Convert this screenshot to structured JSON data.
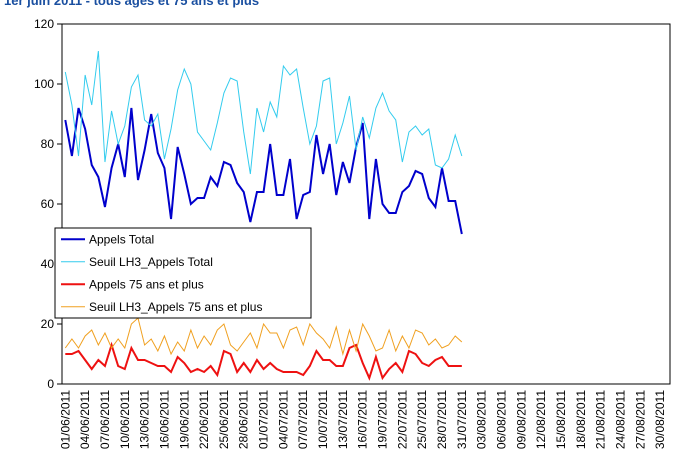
{
  "chart_data": {
    "type": "line",
    "title": "1er juin 2011 - tous âges et 75 ans et plus",
    "categories": [
      "01/06/2011",
      null,
      null,
      "04/06/2011",
      null,
      null,
      "07/06/2011",
      null,
      null,
      "10/06/2011",
      null,
      null,
      "13/06/2011",
      null,
      null,
      "16/06/2011",
      null,
      null,
      "19/06/2011",
      null,
      null,
      "22/06/2011",
      null,
      null,
      "25/06/2011",
      null,
      null,
      "28/06/2011",
      null,
      null,
      "01/07/2011",
      null,
      null,
      "04/07/2011",
      null,
      null,
      "07/07/2011",
      null,
      null,
      "10/07/2011",
      null,
      null,
      "13/07/2011",
      null,
      null,
      "16/07/2011",
      null,
      null,
      "19/07/2011",
      null,
      null,
      "22/07/2011",
      null,
      null,
      "25/07/2011",
      null,
      null,
      "28/07/2011",
      null,
      null,
      "31/07/2011",
      null,
      null,
      "03/08/2011",
      null,
      null,
      "06/08/2011",
      null,
      null,
      "09/08/2011",
      null,
      null,
      "12/08/2011",
      null,
      null,
      "15/08/2011",
      null,
      null,
      "18/08/2011",
      null,
      null,
      "21/08/2011",
      null,
      null,
      "24/08/2011",
      null,
      null,
      "27/08/2011",
      null,
      null,
      "30/08/2011",
      null
    ],
    "series": [
      {
        "name": "Appels Total",
        "color": "#0000cc",
        "width": 2,
        "values": [
          88,
          76,
          92,
          85,
          73,
          69,
          59,
          72,
          80,
          69,
          92,
          68,
          78,
          90,
          77,
          72,
          55,
          79,
          70,
          60,
          62,
          62,
          69,
          66,
          74,
          73,
          67,
          64,
          54,
          64,
          64,
          80,
          63,
          63,
          75,
          55,
          63,
          64,
          83,
          70,
          80,
          63,
          74,
          67,
          79,
          87,
          55,
          75,
          60,
          57,
          57,
          64,
          66,
          71,
          70,
          62,
          59,
          72,
          61,
          61,
          50,
          null,
          null,
          null,
          null,
          null,
          null,
          null,
          null,
          null,
          null,
          null,
          null,
          null,
          null,
          null,
          null,
          null,
          null,
          null,
          null,
          null,
          null,
          null,
          null,
          null,
          null,
          null,
          null,
          null,
          null,
          null
        ]
      },
      {
        "name": "Seuil LH3_Appels Total",
        "color": "#33ccee",
        "width": 1,
        "values": [
          104,
          93,
          76,
          103,
          93,
          111,
          74,
          91,
          80,
          86,
          99,
          103,
          88,
          86,
          90,
          75,
          85,
          98,
          105,
          100,
          84,
          81,
          78,
          87,
          97,
          102,
          101,
          84,
          70,
          92,
          84,
          94,
          89,
          106,
          103,
          105,
          92,
          80,
          86,
          101,
          102,
          80,
          87,
          96,
          78,
          89,
          82,
          92,
          97,
          91,
          88,
          74,
          84,
          86,
          83,
          85,
          73,
          72,
          75,
          83,
          76,
          null,
          null,
          null,
          null,
          null,
          null,
          null,
          null,
          null,
          null,
          null,
          null,
          null,
          null,
          null,
          null,
          null,
          null,
          null,
          null,
          null,
          null,
          null,
          null,
          null,
          null,
          null,
          null,
          null,
          null,
          null
        ]
      },
      {
        "name": "Appels 75 ans et plus",
        "color": "#ee1111",
        "width": 2,
        "values": [
          10,
          10,
          11,
          8,
          5,
          8,
          6,
          13,
          6,
          5,
          12,
          8,
          8,
          7,
          6,
          6,
          4,
          9,
          7,
          4,
          5,
          4,
          6,
          3,
          11,
          10,
          4,
          7,
          4,
          8,
          5,
          7,
          5,
          4,
          4,
          4,
          3,
          6,
          11,
          8,
          8,
          6,
          6,
          12,
          13,
          7,
          2,
          9,
          2,
          5,
          7,
          4,
          11,
          10,
          7,
          6,
          8,
          9,
          6,
          6,
          6,
          null,
          null,
          null,
          null,
          null,
          null,
          null,
          null,
          null,
          null,
          null,
          null,
          null,
          null,
          null,
          null,
          null,
          null,
          null,
          null,
          null,
          null,
          null,
          null,
          null,
          null,
          null,
          null,
          null,
          null,
          null
        ]
      },
      {
        "name": "Seuil LH3_Appels 75 ans et plus",
        "color": "#f0a020",
        "width": 1,
        "values": [
          12,
          15,
          12,
          16,
          18,
          13,
          17,
          12,
          15,
          12,
          20,
          22,
          13,
          15,
          11,
          16,
          10,
          14,
          11,
          18,
          12,
          16,
          13,
          18,
          20,
          13,
          11,
          14,
          17,
          12,
          20,
          17,
          17,
          12,
          18,
          19,
          13,
          20,
          17,
          15,
          12,
          19,
          10,
          18,
          11,
          20,
          16,
          11,
          12,
          18,
          11,
          16,
          12,
          18,
          17,
          13,
          15,
          12,
          13,
          16,
          14,
          null,
          null,
          null,
          null,
          null,
          null,
          null,
          null,
          null,
          null,
          null,
          null,
          null,
          null,
          null,
          null,
          null,
          null,
          null,
          null,
          null,
          null,
          null,
          null,
          null,
          null,
          null,
          null,
          null,
          null,
          null
        ]
      }
    ],
    "ylim": [
      0,
      120
    ],
    "yticks": [
      0,
      20,
      40,
      60,
      80,
      100,
      120
    ],
    "grid": false,
    "legend": "left"
  }
}
